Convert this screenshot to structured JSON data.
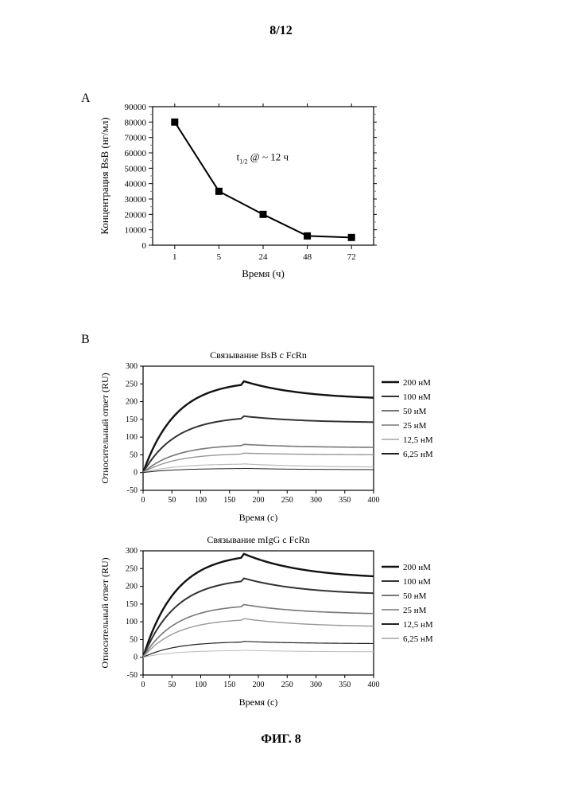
{
  "page_number": "8/12",
  "figure_caption": "ФИГ. 8",
  "panelA": {
    "label": "А",
    "type": "line-marker",
    "x_categories": [
      "1",
      "5",
      "24",
      "48",
      "72"
    ],
    "y_values": [
      80000,
      35000,
      20000,
      6000,
      5000
    ],
    "marker_style": "square",
    "marker_size": 9,
    "line_color": "#000000",
    "marker_color": "#000000",
    "line_width": 2,
    "xlabel": "Время (ч)",
    "ylabel": "Концентрация BsB (нг/мл)",
    "ylim": [
      0,
      90000
    ],
    "ytick_step": 10000,
    "annotation_html": "t<tspan font-size='8' dy='4'>1/2</tspan><tspan dy='-4'> @ ~ 12  ч</tspan>",
    "annotation_plain": "t1/2 @ ~ 12 ч",
    "label_fontsize": 13,
    "tick_fontsize": 11,
    "background_color": "#ffffff",
    "axis_color": "#000000",
    "ytick_minor_color": "#808080"
  },
  "panelB": {
    "label": "В",
    "charts": [
      {
        "title": "Связывание BsB с FcRn",
        "type": "sensorgram",
        "xlabel": "Время (с)",
        "ylabel": "Относительный ответ (RU)",
        "xlim": [
          0,
          400
        ],
        "xtick_step": 50,
        "ylim": [
          -50,
          300
        ],
        "ytick_step": 50,
        "series": [
          {
            "conc": "200 нМ",
            "peak": 260,
            "end": 205,
            "color": "#111111",
            "width": 2.4
          },
          {
            "conc": "100 нМ",
            "peak": 160,
            "end": 140,
            "color": "#333333",
            "width": 2.0
          },
          {
            "conc": "50 нМ",
            "peak": 80,
            "end": 70,
            "color": "#777777",
            "width": 1.6
          },
          {
            "conc": "25 нМ",
            "peak": 55,
            "end": 50,
            "color": "#999999",
            "width": 1.4
          },
          {
            "conc": "12,5 нМ",
            "peak": 25,
            "end": 15,
            "color": "#bbbbbb",
            "width": 1.2
          },
          {
            "conc": "6,25 нМ",
            "peak": 12,
            "end": 8,
            "color": "#222222",
            "width": 1.0
          }
        ],
        "label_fontsize": 12,
        "tick_fontsize": 10,
        "title_fontsize": 12,
        "axis_color": "#000000"
      },
      {
        "title": "Связывание mIgG с FcRn",
        "type": "sensorgram",
        "xlabel": "Время (с)",
        "ylabel": "Относительный ответ (RU)",
        "xlim": [
          0,
          400
        ],
        "xtick_step": 50,
        "ylim": [
          -50,
          300
        ],
        "ytick_step": 50,
        "series": [
          {
            "conc": "200 нМ",
            "peak": 295,
            "end": 220,
            "color": "#111111",
            "width": 2.4
          },
          {
            "conc": "100 нМ",
            "peak": 225,
            "end": 175,
            "color": "#333333",
            "width": 2.0
          },
          {
            "conc": "50 нМ",
            "peak": 150,
            "end": 120,
            "color": "#777777",
            "width": 1.6
          },
          {
            "conc": "25 нМ",
            "peak": 110,
            "end": 85,
            "color": "#999999",
            "width": 1.4
          },
          {
            "conc": "12,5 нМ",
            "peak": 45,
            "end": 38,
            "color": "#222222",
            "width": 1.2
          },
          {
            "conc": "6,25 нМ",
            "peak": 20,
            "end": 15,
            "color": "#bbbbbb",
            "width": 1.0
          }
        ],
        "label_fontsize": 12,
        "tick_fontsize": 10,
        "title_fontsize": 12,
        "axis_color": "#000000"
      }
    ]
  }
}
